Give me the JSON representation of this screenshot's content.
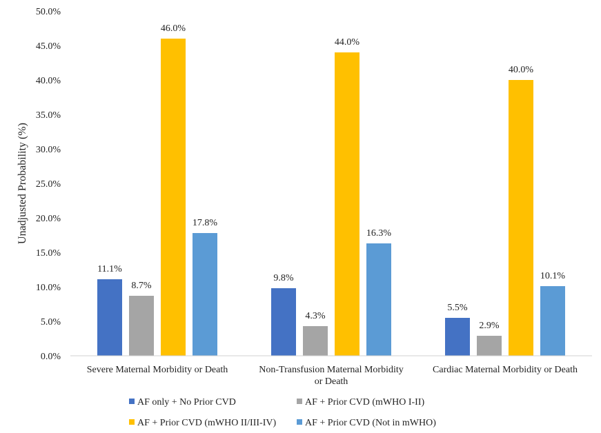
{
  "chart_data": {
    "type": "bar",
    "title": "",
    "xlabel": "",
    "ylabel": "Unadjusted Probability (%)",
    "ylim": [
      0,
      50
    ],
    "yticks": [
      "0.0%",
      "5.0%",
      "10.0%",
      "15.0%",
      "20.0%",
      "25.0%",
      "30.0%",
      "35.0%",
      "40.0%",
      "45.0%",
      "50.0%"
    ],
    "grid": false,
    "legend_position": "bottom",
    "categories": [
      [
        "Severe Maternal Morbidity or Death"
      ],
      [
        "Non-Transfusion Maternal Morbidity",
        "or Death"
      ],
      [
        "Cardiac Maternal Morbidity or Death"
      ]
    ],
    "series": [
      {
        "name": "AF only + No Prior CVD",
        "color": "#4472C4",
        "values": [
          11.1,
          9.8,
          5.5
        ],
        "labels": [
          "11.1%",
          "9.8%",
          "5.5%"
        ]
      },
      {
        "name": "AF + Prior CVD (mWHO I-II)",
        "color": "#A5A5A5",
        "values": [
          8.7,
          4.3,
          2.9
        ],
        "labels": [
          "8.7%",
          "4.3%",
          "2.9%"
        ]
      },
      {
        "name": "AF + Prior CVD (mWHO II/III-IV)",
        "color": "#FFC000",
        "values": [
          46.0,
          44.0,
          40.0
        ],
        "labels": [
          "46.0%",
          "44.0%",
          "40.0%"
        ]
      },
      {
        "name": "AF + Prior CVD (Not in mWHO)",
        "color": "#5B9BD5",
        "values": [
          17.8,
          16.3,
          10.1
        ],
        "labels": [
          "17.8%",
          "16.3%",
          "10.1%"
        ]
      }
    ]
  }
}
